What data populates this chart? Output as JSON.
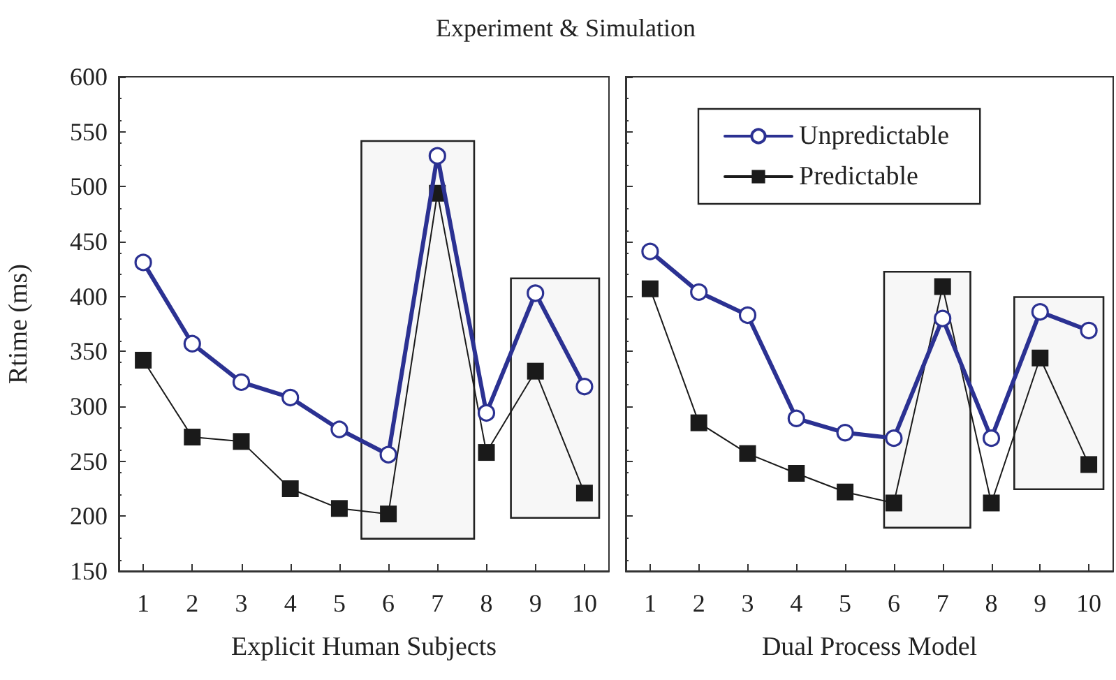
{
  "chart_data": [
    {
      "type": "line",
      "title": "Experiment & Simulation",
      "xlabel": "Explicit Human Subjects",
      "ylabel": "Rtime (ms)",
      "x": [
        1,
        2,
        3,
        4,
        5,
        6,
        7,
        8,
        9,
        10
      ],
      "xlim": [
        0.5,
        10.5
      ],
      "xticks": [
        1,
        2,
        3,
        4,
        5,
        6,
        7,
        8,
        9,
        10
      ],
      "ylim": [
        150,
        600
      ],
      "yticks": [
        150,
        200,
        250,
        300,
        350,
        400,
        450,
        500,
        550,
        600
      ],
      "series": [
        {
          "color": "#2b3192",
          "marker": "circle",
          "values": [
            431,
            357,
            322,
            308,
            279,
            256,
            528,
            294,
            403,
            318
          ]
        },
        {
          "color": "#1a1a1a",
          "marker": "square",
          "values": [
            342,
            272,
            268,
            225,
            207,
            202,
            494,
            258,
            332,
            221
          ]
        }
      ],
      "bands": [
        {
          "axis": "x",
          "from": 5.45,
          "to": 7.75
        },
        {
          "axis": "x",
          "from": 8.5,
          "to": 10.3
        }
      ]
    },
    {
      "type": "line",
      "xlabel": "Dual Process Model",
      "tick_labels": "x",
      "legend": "top",
      "x": [
        1,
        2,
        3,
        4,
        5,
        6,
        7,
        8,
        9,
        10
      ],
      "xlim": [
        0.5,
        10.5
      ],
      "xticks": [
        1,
        2,
        3,
        4,
        5,
        6,
        7,
        8,
        9,
        10
      ],
      "ylim": [
        150,
        600
      ],
      "yticks": [
        150,
        200,
        250,
        300,
        350,
        400,
        450,
        500,
        550,
        600
      ],
      "series": [
        {
          "name": "Unpredictable",
          "color": "#2b3192",
          "marker": "circle",
          "values": [
            441,
            404,
            383,
            289,
            276,
            271,
            380,
            271,
            386,
            369
          ]
        },
        {
          "name": "Predictable",
          "color": "#1a1a1a",
          "marker": "square",
          "values": [
            407,
            285,
            257,
            239,
            222,
            212,
            409,
            212,
            344,
            247
          ]
        }
      ],
      "bands": [
        {
          "axis": "x",
          "from": 5.8,
          "to": 7.57
        },
        {
          "axis": "x",
          "from": 8.47,
          "to": 10.3
        }
      ]
    }
  ]
}
